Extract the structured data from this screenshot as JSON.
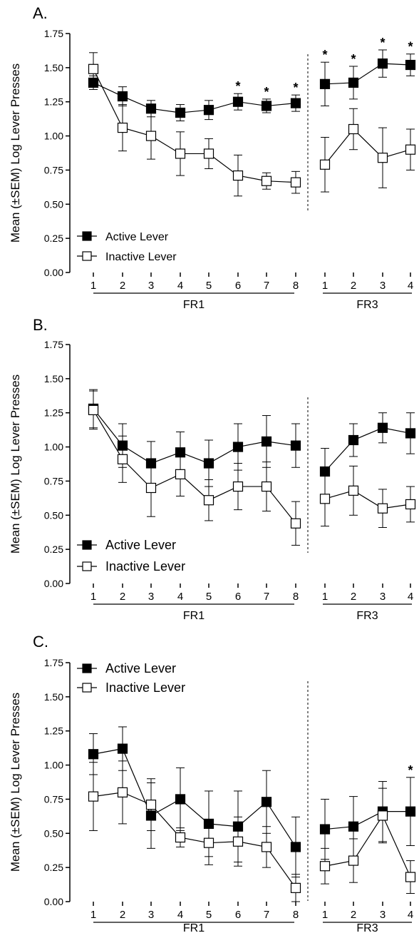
{
  "chart_data": [
    {
      "panel_label": "A.",
      "type": "line",
      "ylabel": "Mean (±SEM) Log Lever Presses",
      "ylim": [
        0,
        1.75
      ],
      "yticks": [
        "0.00",
        "0.25",
        "0.50",
        "0.75",
        "1.00",
        "1.25",
        "1.50",
        "1.75"
      ],
      "legend_position": "bottom-left",
      "groups": [
        {
          "label": "FR1",
          "categories": [
            "1",
            "2",
            "3",
            "4",
            "5",
            "6",
            "7",
            "8"
          ]
        },
        {
          "label": "FR3",
          "categories": [
            "1",
            "2",
            "3",
            "4"
          ]
        }
      ],
      "series": [
        {
          "name": "Active Lever",
          "marker": "filled-square",
          "values": [
            1.39,
            1.29,
            1.2,
            1.17,
            1.19,
            1.25,
            1.22,
            1.24,
            1.38,
            1.39,
            1.53,
            1.52
          ],
          "errors": [
            0.05,
            0.07,
            0.06,
            0.06,
            0.07,
            0.06,
            0.05,
            0.06,
            0.16,
            0.12,
            0.1,
            0.08
          ]
        },
        {
          "name": "Inactive Lever",
          "marker": "open-square",
          "values": [
            1.49,
            1.06,
            1.0,
            0.87,
            0.87,
            0.71,
            0.67,
            0.66,
            0.79,
            1.05,
            0.84,
            0.9
          ],
          "errors": [
            0.12,
            0.17,
            0.17,
            0.16,
            0.11,
            0.15,
            0.06,
            0.08,
            0.2,
            0.15,
            0.22,
            0.15
          ]
        }
      ],
      "annotations": [
        {
          "text": "*",
          "index": 5
        },
        {
          "text": "*",
          "index": 6
        },
        {
          "text": "*",
          "index": 7
        },
        {
          "text": "*",
          "index": 8
        },
        {
          "text": "*",
          "index": 9
        },
        {
          "text": "*",
          "index": 10
        },
        {
          "text": "*",
          "index": 11
        }
      ]
    },
    {
      "panel_label": "B.",
      "type": "line",
      "ylabel": "Mean (±SEM) Log Lever Presses",
      "ylim": [
        0,
        1.75
      ],
      "yticks": [
        "0.00",
        "0.25",
        "0.50",
        "0.75",
        "1.00",
        "1.25",
        "1.50",
        "1.75"
      ],
      "legend_position": "bottom-left",
      "groups": [
        {
          "label": "FR1",
          "categories": [
            "1",
            "2",
            "3",
            "4",
            "5",
            "6",
            "7",
            "8"
          ]
        },
        {
          "label": "FR3",
          "categories": [
            "1",
            "2",
            "3",
            "4"
          ]
        }
      ],
      "series": [
        {
          "name": "Active Lever",
          "marker": "filled-square",
          "values": [
            1.28,
            1.01,
            0.88,
            0.96,
            0.88,
            1.0,
            1.04,
            1.01,
            0.82,
            1.05,
            1.14,
            1.1
          ],
          "errors": [
            0.14,
            0.16,
            0.16,
            0.15,
            0.17,
            0.17,
            0.19,
            0.16,
            0.17,
            0.12,
            0.11,
            0.15
          ]
        },
        {
          "name": "Inactive Lever",
          "marker": "open-square",
          "values": [
            1.27,
            0.91,
            0.7,
            0.8,
            0.61,
            0.71,
            0.71,
            0.44,
            0.62,
            0.68,
            0.55,
            0.58
          ],
          "errors": [
            0.14,
            0.17,
            0.21,
            0.16,
            0.15,
            0.17,
            0.18,
            0.16,
            0.2,
            0.18,
            0.14,
            0.13
          ]
        }
      ],
      "annotations": []
    },
    {
      "panel_label": "C.",
      "type": "line",
      "ylabel": "Mean (±SEM) Log Lever Presses",
      "ylim": [
        0,
        1.75
      ],
      "yticks": [
        "0.00",
        "0.25",
        "0.50",
        "0.75",
        "1.00",
        "1.25",
        "1.50",
        "1.75"
      ],
      "legend_position": "top-left",
      "groups": [
        {
          "label": "FR1",
          "categories": [
            "1",
            "2",
            "3",
            "4",
            "5",
            "6",
            "7",
            "8"
          ]
        },
        {
          "label": "FR3",
          "categories": [
            "1",
            "2",
            "3",
            "4"
          ]
        }
      ],
      "series": [
        {
          "name": "Active Lever",
          "marker": "filled-square",
          "values": [
            1.08,
            1.12,
            0.63,
            0.75,
            0.57,
            0.55,
            0.73,
            0.4,
            0.53,
            0.55,
            0.66,
            0.66
          ],
          "errors": [
            0.15,
            0.16,
            0.24,
            0.23,
            0.24,
            0.26,
            0.23,
            0.22,
            0.22,
            0.22,
            0.22,
            0.25
          ]
        },
        {
          "name": "Inactive Lever",
          "marker": "open-square",
          "values": [
            0.77,
            0.8,
            0.71,
            0.47,
            0.43,
            0.44,
            0.4,
            0.1,
            0.26,
            0.3,
            0.63,
            0.18
          ],
          "errors": [
            0.25,
            0.23,
            0.19,
            0.07,
            0.16,
            0.18,
            0.15,
            0.1,
            0.13,
            0.16,
            0.2,
            0.12
          ]
        }
      ],
      "annotations": [
        {
          "text": "*",
          "index": 11
        }
      ]
    }
  ]
}
